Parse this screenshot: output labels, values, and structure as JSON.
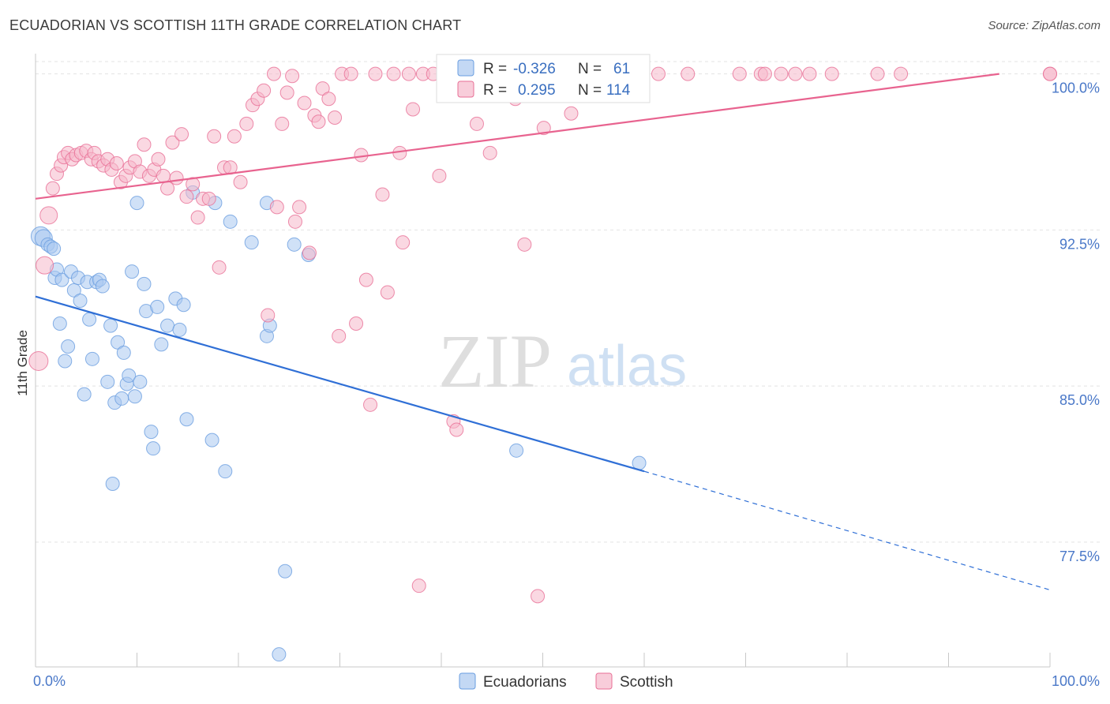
{
  "title": "ECUADORIAN VS SCOTTISH 11TH GRADE CORRELATION CHART",
  "source": "Source: ZipAtlas.com",
  "watermark": {
    "zip": "ZIP",
    "atlas": "atlas"
  },
  "legend_top": {
    "rows": [
      {
        "r_label": "R =",
        "r_value": "-0.326",
        "n_label": "N =",
        "n_value": "61",
        "color": "#a9c8f0"
      },
      {
        "r_label": "R =",
        "r_value": "0.295",
        "n_label": "N =",
        "n_value": "114",
        "color": "#f5b8cb"
      }
    ]
  },
  "legend_bottom": [
    {
      "label": "Ecuadorians",
      "color": "#a9c8f0"
    },
    {
      "label": "Scottish",
      "color": "#f5b8cb"
    }
  ],
  "chart_data": {
    "type": "scatter",
    "title": "ECUADORIAN VS SCOTTISH 11TH GRADE CORRELATION CHART",
    "xlabel": "",
    "ylabel": "11th Grade",
    "xlim": [
      0,
      100
    ],
    "ylim": [
      71.5,
      101.2
    ],
    "x_tick_labels": [
      "0.0%",
      "100.0%"
    ],
    "y_ticks": [
      77.5,
      85.0,
      92.5,
      100.0
    ],
    "y_tick_labels": [
      "77.5%",
      "85.0%",
      "92.5%",
      "100.0%"
    ],
    "grid": true,
    "legend_position": "top-center",
    "series": [
      {
        "name": "Ecuadorians",
        "color": "#6a9ee0",
        "fill": "#a9c8f0",
        "trend": {
          "x0": 0,
          "y0": 89.3,
          "x1": 60,
          "y1": 80.9,
          "dashed_to_x": 100,
          "dashed_to_y": 75.2
        },
        "points": [
          [
            0.5,
            92.2
          ],
          [
            0.8,
            92.1
          ],
          [
            1.2,
            91.8
          ],
          [
            1.5,
            91.7
          ],
          [
            1.8,
            91.6
          ],
          [
            1.9,
            90.2
          ],
          [
            2.1,
            90.6
          ],
          [
            2.4,
            88.0
          ],
          [
            2.6,
            90.1
          ],
          [
            2.9,
            86.2
          ],
          [
            3.2,
            86.9
          ],
          [
            3.5,
            90.5
          ],
          [
            3.8,
            89.6
          ],
          [
            4.2,
            90.2
          ],
          [
            4.4,
            89.1
          ],
          [
            4.8,
            84.6
          ],
          [
            5.1,
            90.0
          ],
          [
            5.3,
            88.2
          ],
          [
            5.6,
            86.3
          ],
          [
            6.0,
            90.0
          ],
          [
            6.3,
            90.1
          ],
          [
            6.6,
            89.8
          ],
          [
            7.1,
            85.2
          ],
          [
            7.4,
            87.9
          ],
          [
            7.6,
            80.3
          ],
          [
            7.8,
            84.2
          ],
          [
            8.1,
            87.1
          ],
          [
            8.5,
            84.4
          ],
          [
            8.7,
            86.6
          ],
          [
            9.0,
            85.1
          ],
          [
            9.2,
            85.5
          ],
          [
            9.5,
            90.5
          ],
          [
            9.8,
            84.5
          ],
          [
            10.0,
            93.8
          ],
          [
            10.3,
            85.2
          ],
          [
            10.7,
            89.9
          ],
          [
            10.9,
            88.6
          ],
          [
            11.4,
            82.8
          ],
          [
            11.6,
            82.0
          ],
          [
            12.0,
            88.8
          ],
          [
            12.4,
            87.0
          ],
          [
            13.0,
            87.9
          ],
          [
            13.8,
            89.2
          ],
          [
            14.2,
            87.7
          ],
          [
            14.6,
            88.9
          ],
          [
            14.9,
            83.4
          ],
          [
            15.5,
            94.3
          ],
          [
            17.4,
            82.4
          ],
          [
            17.7,
            93.8
          ],
          [
            18.7,
            80.9
          ],
          [
            19.2,
            92.9
          ],
          [
            21.3,
            91.9
          ],
          [
            22.8,
            93.8
          ],
          [
            22.8,
            87.4
          ],
          [
            23.1,
            87.9
          ],
          [
            24.0,
            72.1
          ],
          [
            24.6,
            76.1
          ],
          [
            25.5,
            91.8
          ],
          [
            26.9,
            91.3
          ],
          [
            47.4,
            81.9
          ],
          [
            59.5,
            81.3
          ]
        ]
      },
      {
        "name": "Scottish",
        "color": "#e86f96",
        "fill": "#f5b8cb",
        "trend": {
          "x0": 0,
          "y0": 94.0,
          "x1": 95,
          "y1": 100.0
        },
        "points": [
          [
            0.3,
            86.2
          ],
          [
            0.9,
            90.8
          ],
          [
            1.3,
            93.2
          ],
          [
            1.7,
            94.5
          ],
          [
            2.1,
            95.2
          ],
          [
            2.5,
            95.6
          ],
          [
            2.8,
            96.0
          ],
          [
            3.2,
            96.2
          ],
          [
            3.6,
            95.9
          ],
          [
            4.0,
            96.1
          ],
          [
            4.5,
            96.2
          ],
          [
            5.0,
            96.3
          ],
          [
            5.5,
            95.9
          ],
          [
            5.8,
            96.2
          ],
          [
            6.2,
            95.8
          ],
          [
            6.7,
            95.6
          ],
          [
            7.1,
            95.9
          ],
          [
            7.5,
            95.4
          ],
          [
            8.0,
            95.7
          ],
          [
            8.4,
            94.8
          ],
          [
            8.9,
            95.1
          ],
          [
            9.3,
            95.5
          ],
          [
            9.8,
            95.8
          ],
          [
            10.3,
            95.3
          ],
          [
            10.7,
            96.6
          ],
          [
            11.2,
            95.1
          ],
          [
            11.7,
            95.4
          ],
          [
            12.1,
            95.9
          ],
          [
            12.6,
            95.1
          ],
          [
            13.0,
            94.5
          ],
          [
            13.5,
            96.7
          ],
          [
            13.9,
            95.0
          ],
          [
            14.4,
            97.1
          ],
          [
            14.9,
            94.1
          ],
          [
            15.5,
            94.7
          ],
          [
            16.0,
            93.1
          ],
          [
            16.5,
            94.0
          ],
          [
            17.1,
            94.0
          ],
          [
            17.6,
            97.0
          ],
          [
            18.1,
            90.7
          ],
          [
            18.6,
            95.5
          ],
          [
            19.2,
            95.5
          ],
          [
            19.6,
            97.0
          ],
          [
            20.2,
            94.8
          ],
          [
            20.8,
            97.6
          ],
          [
            21.4,
            98.5
          ],
          [
            21.9,
            98.8
          ],
          [
            22.5,
            99.2
          ],
          [
            22.9,
            88.4
          ],
          [
            23.5,
            100.0
          ],
          [
            23.8,
            93.6
          ],
          [
            24.3,
            97.6
          ],
          [
            24.8,
            99.1
          ],
          [
            25.3,
            99.9
          ],
          [
            25.6,
            92.9
          ],
          [
            26.0,
            93.6
          ],
          [
            26.5,
            98.6
          ],
          [
            27.0,
            91.4
          ],
          [
            27.5,
            98.0
          ],
          [
            27.9,
            97.7
          ],
          [
            28.3,
            99.3
          ],
          [
            28.9,
            98.8
          ],
          [
            29.5,
            97.9
          ],
          [
            29.9,
            87.4
          ],
          [
            30.2,
            100.0
          ],
          [
            31.1,
            100.0
          ],
          [
            31.6,
            88.0
          ],
          [
            32.1,
            96.1
          ],
          [
            32.6,
            90.1
          ],
          [
            33.0,
            84.1
          ],
          [
            33.5,
            100.0
          ],
          [
            34.2,
            94.2
          ],
          [
            34.7,
            89.5
          ],
          [
            35.3,
            100.0
          ],
          [
            35.9,
            96.2
          ],
          [
            36.2,
            91.9
          ],
          [
            36.8,
            100.0
          ],
          [
            37.2,
            98.3
          ],
          [
            37.8,
            75.4
          ],
          [
            38.2,
            100.0
          ],
          [
            39.2,
            100.0
          ],
          [
            39.8,
            95.1
          ],
          [
            40.6,
            100.0
          ],
          [
            41.2,
            83.3
          ],
          [
            41.5,
            82.9
          ],
          [
            42.1,
            100.0
          ],
          [
            43.5,
            97.6
          ],
          [
            44.8,
            96.2
          ],
          [
            45.4,
            100.0
          ],
          [
            46.3,
            100.0
          ],
          [
            47.3,
            98.8
          ],
          [
            48.2,
            91.8
          ],
          [
            48.7,
            100.0
          ],
          [
            49.5,
            74.9
          ],
          [
            50.1,
            97.4
          ],
          [
            51.9,
            100.0
          ],
          [
            52.8,
            98.1
          ],
          [
            53.4,
            100.0
          ],
          [
            55.0,
            100.0
          ],
          [
            57.2,
            100.0
          ],
          [
            59.1,
            100.0
          ],
          [
            61.4,
            100.0
          ],
          [
            64.3,
            100.0
          ],
          [
            69.4,
            100.0
          ],
          [
            71.5,
            100.0
          ],
          [
            71.9,
            100.0
          ],
          [
            73.5,
            100.0
          ],
          [
            74.9,
            100.0
          ],
          [
            76.3,
            100.0
          ],
          [
            78.5,
            100.0
          ],
          [
            83.0,
            100.0
          ],
          [
            85.3,
            100.0
          ],
          [
            100.0,
            100.0
          ],
          [
            100.0,
            100.0
          ]
        ]
      }
    ]
  }
}
